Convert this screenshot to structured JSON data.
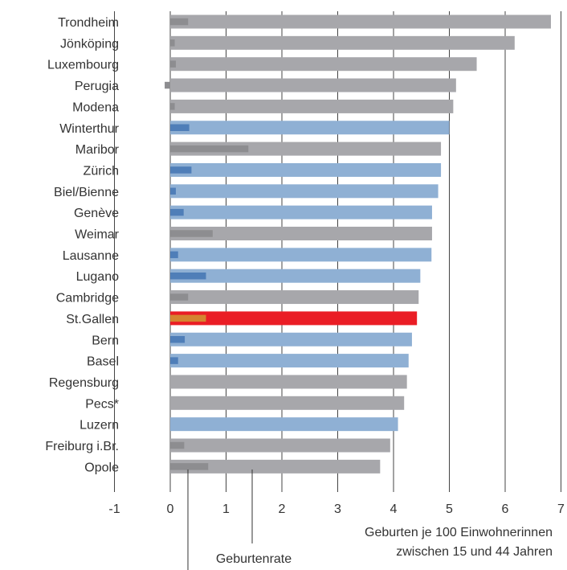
{
  "chart_data": {
    "type": "bar",
    "categories": [
      "Trondheim",
      "Jönköping",
      "Luxembourg",
      "Perugia",
      "Modena",
      "Winterthur",
      "Maribor",
      "Zürich",
      "Biel/Bienne",
      "Genève",
      "Weimar",
      "Lausanne",
      "Lugano",
      "Cambridge",
      "St.Gallen",
      "Bern",
      "Basel",
      "Regensburg",
      "Pecs*",
      "Luzern",
      "Freiburg i.Br.",
      "Opole"
    ],
    "series": [
      {
        "key": "total",
        "values": [
          6.82,
          6.17,
          5.49,
          5.12,
          5.07,
          5.0,
          4.85,
          4.85,
          4.8,
          4.69,
          4.69,
          4.68,
          4.48,
          4.45,
          4.42,
          4.33,
          4.27,
          4.24,
          4.19,
          4.08,
          3.94,
          3.76
        ]
      },
      {
        "key": "rate",
        "values": [
          0.32,
          0.08,
          0.1,
          -0.1,
          0.08,
          0.34,
          1.4,
          0.38,
          0.1,
          0.24,
          0.76,
          0.14,
          0.64,
          0.32,
          0.64,
          0.26,
          0.14,
          0.0,
          0.0,
          0.0,
          0.25,
          0.68
        ]
      }
    ],
    "group": [
      "other",
      "other",
      "other",
      "other",
      "other",
      "swiss",
      "other",
      "swiss",
      "swiss",
      "swiss",
      "other",
      "swiss",
      "swiss",
      "other",
      "highlight",
      "swiss",
      "swiss",
      "other",
      "other",
      "swiss",
      "other",
      "other"
    ],
    "colors": {
      "other": "#a7a7ab",
      "other_inner": "#8d8d90",
      "swiss": "#8fb0d4",
      "swiss_inner": "#4f7eb8",
      "highlight": "#ea1d25",
      "highlight_inner": "#d58430",
      "grid": "#444444",
      "text": "#333333"
    },
    "xlim": [
      -1,
      7
    ],
    "xticks": [
      -1,
      0,
      1,
      2,
      3,
      4,
      5,
      6,
      7
    ],
    "x_axis_note": [
      "Geburten je 100 Einwohnerinnen",
      "zwischen 15 und 44 Jahren"
    ],
    "annotation": "Geburtenrate",
    "grid": true
  }
}
